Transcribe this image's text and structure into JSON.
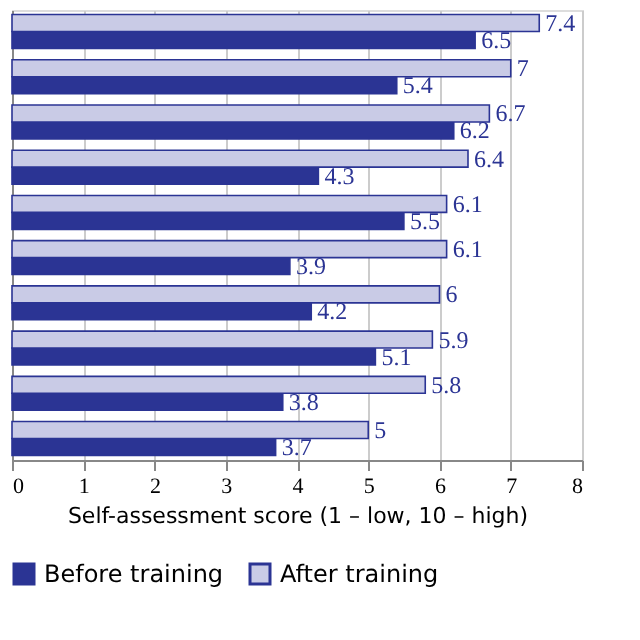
{
  "chart_data": {
    "type": "bar",
    "orientation": "horizontal",
    "xlabel": "Self-assessment score (1 – low, 10 – high)",
    "categories": [
      null,
      null,
      null,
      null,
      null,
      null,
      null,
      null,
      null,
      null
    ],
    "series": [
      {
        "name": "Before training",
        "color": "#2b3494",
        "values": [
          6.5,
          5.4,
          6.2,
          4.3,
          5.5,
          3.9,
          4.2,
          5.1,
          3.8,
          3.7
        ]
      },
      {
        "name": "After training",
        "color": "#c9cbe6",
        "values": [
          7.4,
          7,
          6.7,
          6.4,
          6.1,
          6.1,
          6,
          5.9,
          5.8,
          5
        ]
      }
    ],
    "xlim": [
      0,
      8
    ],
    "xticks": [
      0,
      1,
      2,
      3,
      4,
      5,
      6,
      7,
      8
    ],
    "grid": "x",
    "legend": "bottom",
    "data_labels": true,
    "tick_labels": "x"
  }
}
